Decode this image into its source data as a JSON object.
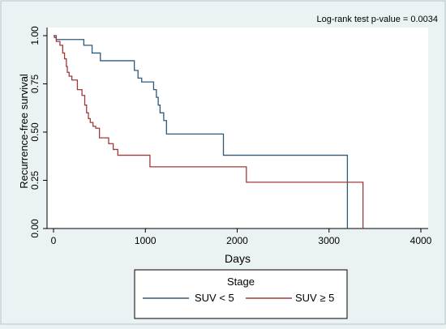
{
  "chart_data": {
    "type": "line",
    "step": true,
    "title": "",
    "annotation": "Log-rank test p-value = 0.0034",
    "xlabel": "Days",
    "ylabel": "Recurrence-free survival",
    "xlim": [
      0,
      4000
    ],
    "ylim": [
      0,
      1
    ],
    "xticks": [
      0,
      1000,
      2000,
      3000,
      4000
    ],
    "yticks": [
      0,
      0.25,
      0.5,
      0.75,
      1
    ],
    "yticklabels": [
      "0.00",
      "0.25",
      "0.50",
      "0.75",
      "1.00"
    ],
    "grid": false,
    "legend": {
      "title": "Stage",
      "position": "bottom"
    },
    "series": [
      {
        "name": "SUV < 5",
        "color": "#2d5a7b",
        "x": [
          0,
          30,
          330,
          420,
          510,
          880,
          920,
          960,
          1090,
          1120,
          1140,
          1160,
          1200,
          1230,
          1850,
          3200
        ],
        "y": [
          1.0,
          0.98,
          0.95,
          0.91,
          0.87,
          0.82,
          0.78,
          0.76,
          0.72,
          0.68,
          0.64,
          0.6,
          0.56,
          0.49,
          0.38,
          0.0
        ]
      },
      {
        "name": "SUV ≥ 5",
        "color": "#a03a3a",
        "x": [
          0,
          10,
          30,
          70,
          100,
          120,
          140,
          150,
          170,
          200,
          230,
          260,
          310,
          340,
          360,
          380,
          400,
          430,
          460,
          500,
          600,
          650,
          700,
          1050,
          2100,
          3370
        ],
        "y": [
          1.0,
          0.99,
          0.97,
          0.95,
          0.91,
          0.88,
          0.84,
          0.81,
          0.79,
          0.77,
          0.77,
          0.72,
          0.69,
          0.64,
          0.6,
          0.57,
          0.55,
          0.53,
          0.52,
          0.47,
          0.44,
          0.41,
          0.38,
          0.32,
          0.24,
          0.0
        ]
      }
    ]
  }
}
